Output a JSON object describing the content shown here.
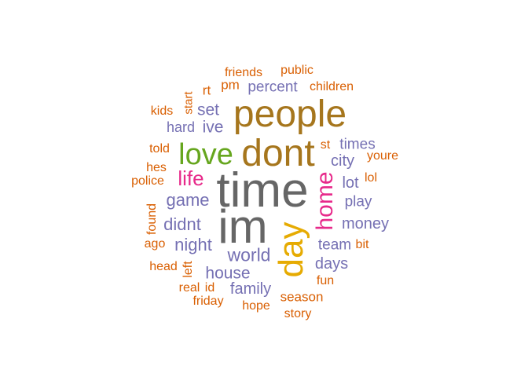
{
  "colors": {
    "orange": "#D95F02",
    "purple": "#7570B3",
    "magenta": "#E7298A",
    "green": "#66A61E",
    "gold": "#E6AB02",
    "brown": "#A6761D",
    "gray": "#666666"
  },
  "words": [
    {
      "text": "friends",
      "color": "#D95F02"
    },
    {
      "text": "public",
      "color": "#D95F02"
    },
    {
      "text": "pm",
      "color": "#D95F02"
    },
    {
      "text": "percent",
      "color": "#7570B3"
    },
    {
      "text": "children",
      "color": "#D95F02"
    },
    {
      "text": "rt",
      "color": "#D95F02"
    },
    {
      "text": "start",
      "color": "#D95F02"
    },
    {
      "text": "kids",
      "color": "#D95F02"
    },
    {
      "text": "set",
      "color": "#7570B3"
    },
    {
      "text": "people",
      "color": "#A6761D"
    },
    {
      "text": "hard",
      "color": "#7570B3"
    },
    {
      "text": "ive",
      "color": "#7570B3"
    },
    {
      "text": "told",
      "color": "#D95F02"
    },
    {
      "text": "love",
      "color": "#66A61E"
    },
    {
      "text": "dont",
      "color": "#A6761D"
    },
    {
      "text": "st",
      "color": "#D95F02"
    },
    {
      "text": "times",
      "color": "#7570B3"
    },
    {
      "text": "youre",
      "color": "#D95F02"
    },
    {
      "text": "hes",
      "color": "#D95F02"
    },
    {
      "text": "city",
      "color": "#7570B3"
    },
    {
      "text": "police",
      "color": "#D95F02"
    },
    {
      "text": "life",
      "color": "#E7298A"
    },
    {
      "text": "time",
      "color": "#666666"
    },
    {
      "text": "home",
      "color": "#E7298A"
    },
    {
      "text": "lot",
      "color": "#7570B3"
    },
    {
      "text": "lol",
      "color": "#D95F02"
    },
    {
      "text": "game",
      "color": "#7570B3"
    },
    {
      "text": "play",
      "color": "#7570B3"
    },
    {
      "text": "found",
      "color": "#D95F02"
    },
    {
      "text": "didnt",
      "color": "#7570B3"
    },
    {
      "text": "im",
      "color": "#666666"
    },
    {
      "text": "money",
      "color": "#7570B3"
    },
    {
      "text": "day",
      "color": "#E6AB02"
    },
    {
      "text": "ago",
      "color": "#D95F02"
    },
    {
      "text": "night",
      "color": "#7570B3"
    },
    {
      "text": "team",
      "color": "#7570B3"
    },
    {
      "text": "bit",
      "color": "#D95F02"
    },
    {
      "text": "world",
      "color": "#7570B3"
    },
    {
      "text": "head",
      "color": "#D95F02"
    },
    {
      "text": "days",
      "color": "#7570B3"
    },
    {
      "text": "left",
      "color": "#D95F02"
    },
    {
      "text": "house",
      "color": "#7570B3"
    },
    {
      "text": "fun",
      "color": "#D95F02"
    },
    {
      "text": "real",
      "color": "#D95F02"
    },
    {
      "text": "id",
      "color": "#D95F02"
    },
    {
      "text": "family",
      "color": "#7570B3"
    },
    {
      "text": "season",
      "color": "#D95F02"
    },
    {
      "text": "friday",
      "color": "#D95F02"
    },
    {
      "text": "hope",
      "color": "#D95F02"
    },
    {
      "text": "story",
      "color": "#D95F02"
    }
  ]
}
